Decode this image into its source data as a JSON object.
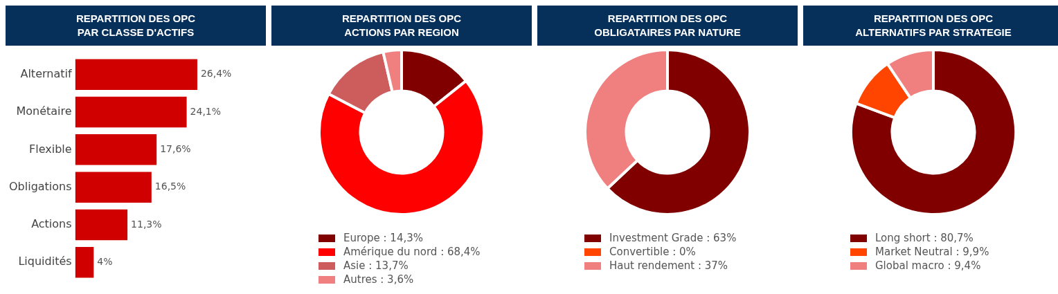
{
  "chart_data": [
    {
      "type": "bar",
      "orientation": "horizontal",
      "title": "REPARTITION DES OPC\nPAR CLASSE D'ACTIFS",
      "categories": [
        "Alternatif",
        "Monétaire",
        "Flexible",
        "Obligations",
        "Actions",
        "Liquidités"
      ],
      "values": [
        26.4,
        24.1,
        17.6,
        16.5,
        11.3,
        4
      ],
      "value_labels": [
        "26,4%",
        "24,1%",
        "17,6%",
        "16,5%",
        "11,3%",
        "4%"
      ],
      "color": "#d00000",
      "grid": false,
      "legend": false
    },
    {
      "type": "donut",
      "title": "REPARTITION DES OPC\nACTIONS PAR REGION",
      "categories": [
        "Europe",
        "Amérique du nord",
        "Asie",
        "Autres"
      ],
      "values": [
        14.3,
        68.4,
        13.7,
        3.6
      ],
      "value_labels": [
        "14,3%",
        "68,4%",
        "13,7%",
        "3,6%"
      ],
      "colors": [
        "#800000",
        "#ff0000",
        "#cd5c5c",
        "#f08080"
      ],
      "legend": "bottom"
    },
    {
      "type": "donut",
      "title": "REPARTITION DES OPC\nOBLIGATAIRES PAR NATURE",
      "categories": [
        "Investment Grade",
        "Convertible",
        "Haut rendement"
      ],
      "values": [
        63,
        0,
        37
      ],
      "value_labels": [
        "63%",
        "0%",
        "37%"
      ],
      "colors": [
        "#800000",
        "#ff4500",
        "#f08080"
      ],
      "legend": "bottom"
    },
    {
      "type": "donut",
      "title": "REPARTITION DES OPC\nALTERNATIFS PAR STRATEGIE",
      "categories": [
        "Long short",
        "Market Neutral",
        "Global macro"
      ],
      "values": [
        80.7,
        9.9,
        9.4
      ],
      "value_labels": [
        "80,7%",
        "9,9%",
        "9,4%"
      ],
      "colors": [
        "#800000",
        "#ff4500",
        "#f08080"
      ],
      "legend": "bottom"
    }
  ]
}
